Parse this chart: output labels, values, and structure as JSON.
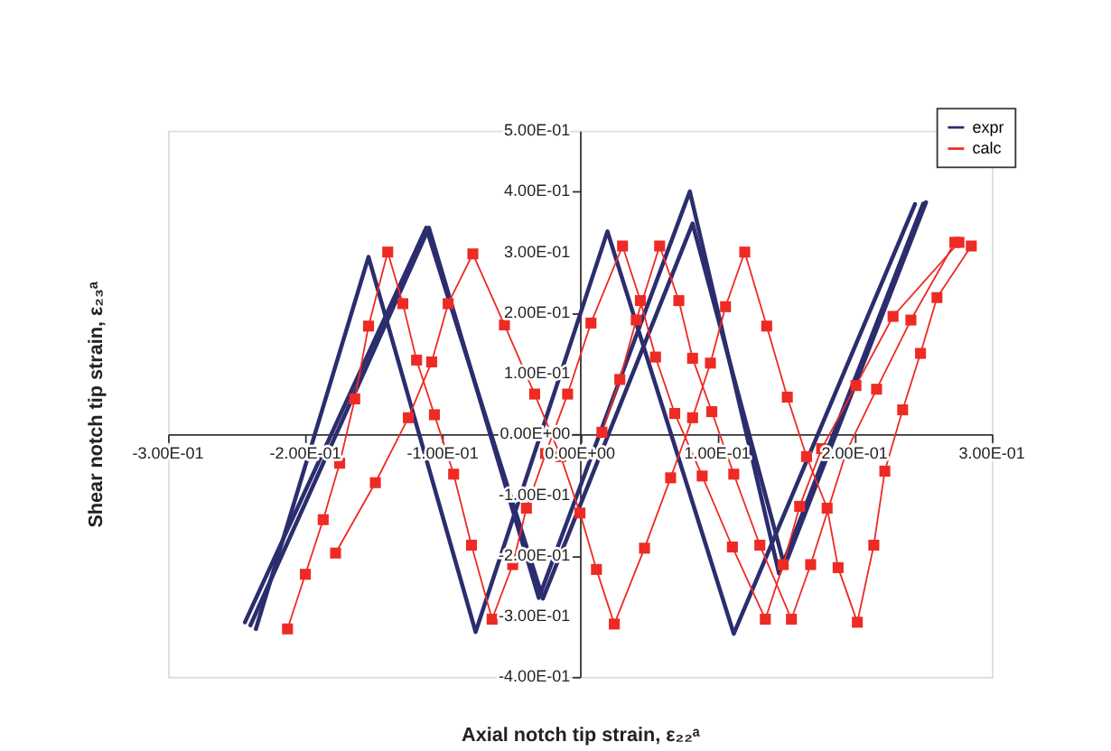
{
  "chart_data": {
    "type": "line",
    "xlabel": "Axial notch tip strain, ε₂₂ᵃ",
    "ylabel": "Shear notch tip strain, ε₂₃ᵃ",
    "xlim": [
      -0.3,
      0.3
    ],
    "ylim": [
      -0.4,
      0.5
    ],
    "xticks": [
      {
        "value": -0.3,
        "label": "-3.00E-01"
      },
      {
        "value": -0.2,
        "label": "-2.00E-01"
      },
      {
        "value": -0.1,
        "label": "-1.00E-01"
      },
      {
        "value": 0,
        "label": "0.00E+00"
      },
      {
        "value": 0.1,
        "label": "1.00E-01"
      },
      {
        "value": 0.2,
        "label": "2.00E-01"
      },
      {
        "value": 0.3,
        "label": "3.00E-01"
      }
    ],
    "yticks": [
      {
        "value": -0.4,
        "label": "-4.00E-01"
      },
      {
        "value": -0.3,
        "label": "-3.00E-01"
      },
      {
        "value": -0.2,
        "label": "-2.00E-01"
      },
      {
        "value": -0.1,
        "label": "-1.00E-01"
      },
      {
        "value": 0,
        "label": "0.00E+00"
      },
      {
        "value": 0.1,
        "label": "1.00E-01"
      },
      {
        "value": 0.2,
        "label": "2.00E-01"
      },
      {
        "value": 0.3,
        "label": "3.00E-01"
      },
      {
        "value": 0.4,
        "label": "4.00E-01"
      },
      {
        "value": 0.5,
        "label": "5.00E-01"
      }
    ],
    "grid": false,
    "legend": "top right",
    "series": [
      {
        "name": "expr",
        "color": "#2b2d6e",
        "marker": "none",
        "x": [
          -0.236,
          -0.154,
          -0.076,
          0.02,
          0.112,
          0.244,
          null,
          -0.244,
          -0.112,
          -0.027,
          0.082,
          0.149,
          0.252,
          null,
          -0.24,
          -0.11,
          -0.03,
          0.08,
          0.145,
          0.25
        ],
        "values": [
          -0.321,
          0.292,
          -0.326,
          0.334,
          -0.329,
          0.379,
          null,
          -0.31,
          0.34,
          -0.271,
          0.347,
          -0.218,
          0.382,
          null,
          -0.315,
          0.34,
          -0.27,
          0.4,
          -0.23,
          0.38
        ]
      },
      {
        "name": "calc",
        "color": "#ee2a24",
        "marker": "square",
        "x": [
          -0.213,
          -0.2,
          -0.187,
          -0.175,
          -0.164,
          -0.154,
          -0.14,
          -0.129,
          -0.119,
          -0.106,
          -0.092,
          -0.079,
          -0.064,
          -0.049,
          -0.039,
          -0.025,
          -0.009,
          0.008,
          0.031,
          0.044,
          0.055,
          0.069,
          0.089,
          0.111,
          0.135,
          0.148,
          0.16,
          0.176,
          0.201,
          0.228,
          0.276,
          null,
          -0.178,
          -0.149,
          -0.125,
          -0.108,
          -0.096,
          -0.078,
          -0.055,
          -0.033,
          -0.014,
          0,
          0.012,
          0.025,
          0.047,
          0.066,
          0.082,
          0.095,
          0.106,
          0.12,
          0.136,
          0.151,
          0.165,
          0.18,
          0.188,
          0.202,
          0.214,
          0.222,
          0.235,
          0.248,
          0.26,
          0.285,
          null,
          0.016,
          0.029,
          0.041,
          0.058,
          0.072,
          0.082,
          0.096,
          0.112,
          0.131,
          0.154,
          0.168,
          0.194,
          0.216,
          0.241,
          0.273
        ],
        "values": [
          -0.321,
          -0.231,
          -0.141,
          -0.048,
          0.058,
          0.178,
          0.3,
          0.215,
          0.122,
          0.032,
          -0.066,
          -0.183,
          -0.305,
          -0.215,
          -0.122,
          -0.032,
          0.066,
          0.183,
          0.31,
          0.22,
          0.127,
          0.034,
          -0.069,
          -0.186,
          -0.305,
          -0.215,
          -0.119,
          -0.024,
          0.08,
          0.194,
          0.316,
          null,
          -0.196,
          -0.08,
          0.027,
          0.119,
          0.215,
          0.297,
          0.18,
          0.066,
          -0.037,
          -0.13,
          -0.223,
          -0.313,
          -0.188,
          -0.072,
          0.027,
          0.117,
          0.21,
          0.3,
          0.178,
          0.061,
          -0.037,
          -0.122,
          -0.22,
          -0.31,
          -0.183,
          -0.061,
          0.04,
          0.133,
          0.225,
          0.31,
          null,
          0.003,
          0.09,
          0.188,
          0.31,
          0.22,
          0.125,
          0.037,
          -0.066,
          -0.183,
          -0.305,
          -0.215,
          -0.029,
          0.074,
          0.188,
          0.316
        ]
      }
    ]
  }
}
